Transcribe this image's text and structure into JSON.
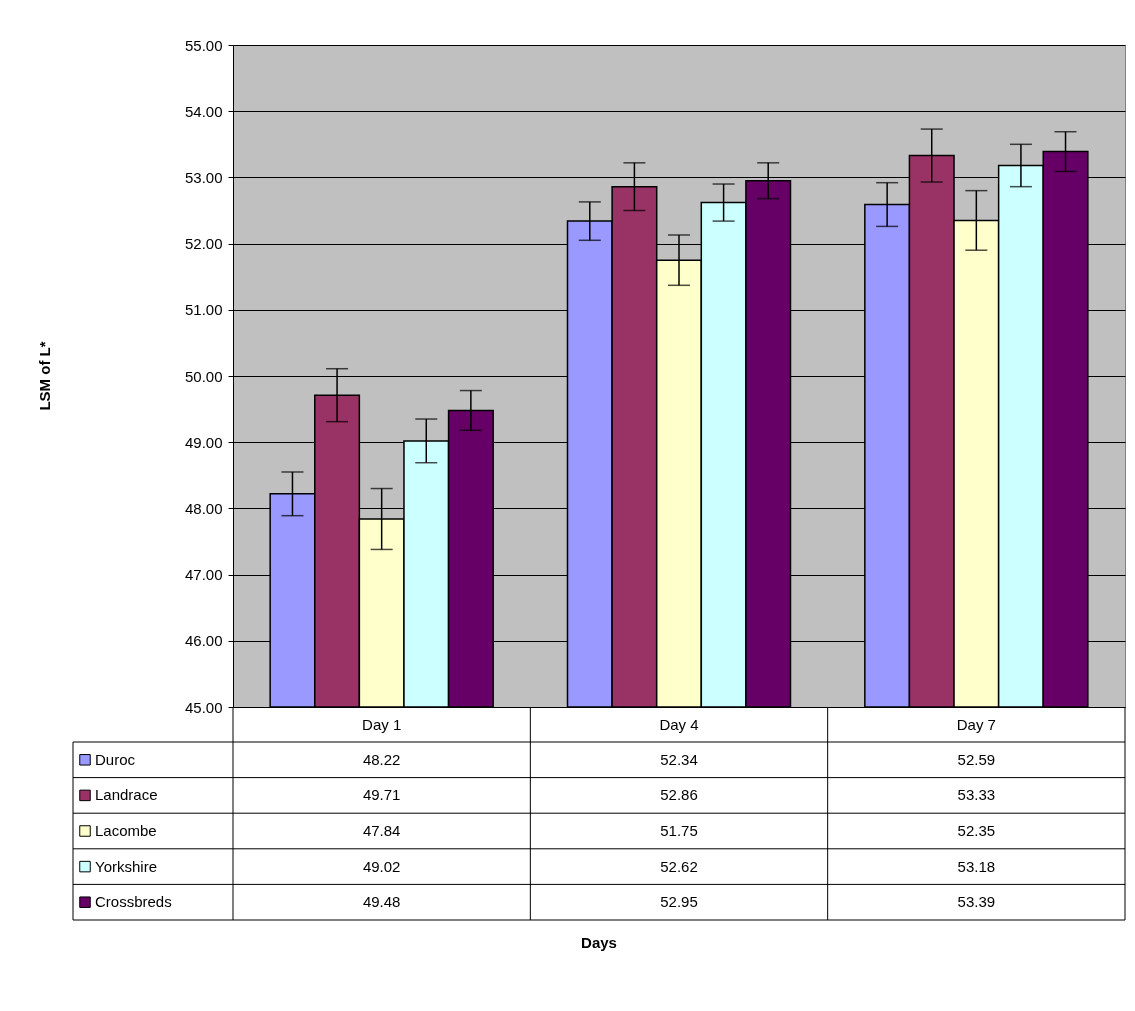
{
  "chart_data": {
    "type": "bar",
    "annotations": [
      "LSM of L*",
      "Days"
    ],
    "categories": [
      "Day 1",
      "Day 4",
      "Day 7"
    ],
    "series": [
      {
        "name": "Duroc",
        "color": "#9999ff",
        "values": [
          48.22,
          52.34,
          52.59
        ],
        "errors": [
          0.33,
          0.29,
          0.33
        ]
      },
      {
        "name": "Landrace",
        "color": "#993366",
        "values": [
          49.71,
          52.86,
          53.33
        ],
        "errors": [
          0.4,
          0.36,
          0.4
        ]
      },
      {
        "name": "Lacombe",
        "color": "#ffffcc",
        "values": [
          47.84,
          51.75,
          52.35
        ],
        "errors": [
          0.46,
          0.38,
          0.45
        ]
      },
      {
        "name": "Yorkshire",
        "color": "#ccffff",
        "values": [
          49.02,
          52.62,
          53.18
        ],
        "errors": [
          0.33,
          0.28,
          0.32
        ]
      },
      {
        "name": "Crossbreds",
        "color": "#660066",
        "values": [
          49.48,
          52.95,
          53.39
        ],
        "errors": [
          0.3,
          0.27,
          0.3
        ]
      }
    ],
    "ylim": [
      45,
      55
    ],
    "yticks": [
      {
        "value": 45,
        "label": "45.00"
      },
      {
        "value": 46,
        "label": "46.00"
      },
      {
        "value": 47,
        "label": "47.00"
      },
      {
        "value": 48,
        "label": "48.00"
      },
      {
        "value": 49,
        "label": "49.00"
      },
      {
        "value": 50,
        "label": "50.00"
      },
      {
        "value": 51,
        "label": "51.00"
      },
      {
        "value": 52,
        "label": "52.00"
      },
      {
        "value": 53,
        "label": "53.00"
      },
      {
        "value": 54,
        "label": "54.00"
      },
      {
        "value": 55,
        "label": "55.00"
      }
    ],
    "grid": "y",
    "data_labels": true,
    "legend": "bottom left"
  }
}
